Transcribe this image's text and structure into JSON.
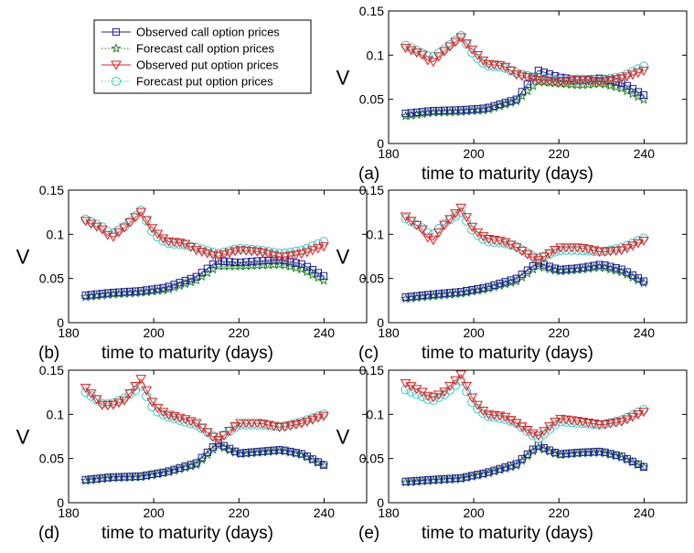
{
  "legend": [
    {
      "label": "Observed call option prices",
      "color": "#1f1fa0",
      "marker": "square",
      "line": "solid"
    },
    {
      "label": "Forecast call option prices",
      "color": "#1c7d1c",
      "marker": "star",
      "line": "dotted"
    },
    {
      "label": "Observed put option prices",
      "color": "#e02020",
      "marker": "triangle-down",
      "line": "solid"
    },
    {
      "label": "Forecast put option prices",
      "color": "#3cc8c8",
      "marker": "circle",
      "line": "dotted"
    }
  ],
  "chart_data": [
    {
      "type": "line",
      "panel_label": "(a)",
      "xlabel": "time to maturity (days)",
      "ylabel": "V",
      "xlim": [
        180,
        250
      ],
      "ylim": [
        0,
        0.15
      ],
      "xticks": [
        "180",
        "200",
        "220",
        "240"
      ],
      "yticks": [
        "0",
        "0.05",
        "0.1",
        "0.15"
      ],
      "x_range": [
        184,
        241
      ],
      "series": [
        {
          "name": "Observed call option prices",
          "x": [
            184,
            190,
            197,
            203,
            210,
            215,
            220,
            225,
            230,
            235,
            241
          ],
          "y": [
            0.034,
            0.037,
            0.038,
            0.04,
            0.05,
            0.083,
            0.075,
            0.072,
            0.074,
            0.068,
            0.052
          ]
        },
        {
          "name": "Forecast call option prices",
          "x": [
            184,
            190,
            197,
            203,
            210,
            215,
            220,
            225,
            230,
            235,
            241
          ],
          "y": [
            0.031,
            0.035,
            0.036,
            0.038,
            0.048,
            0.07,
            0.068,
            0.066,
            0.068,
            0.062,
            0.047
          ]
        },
        {
          "name": "Observed put option prices",
          "x": [
            184,
            188,
            190,
            193,
            197,
            200,
            203,
            207,
            210,
            215,
            220,
            225,
            230,
            235,
            241
          ],
          "y": [
            0.108,
            0.1,
            0.09,
            0.104,
            0.12,
            0.104,
            0.09,
            0.088,
            0.078,
            0.072,
            0.07,
            0.072,
            0.07,
            0.074,
            0.084
          ]
        },
        {
          "name": "Forecast put option prices",
          "x": [
            184,
            188,
            190,
            193,
            197,
            200,
            203,
            207,
            210,
            215,
            220,
            225,
            230,
            235,
            241
          ],
          "y": [
            0.111,
            0.102,
            0.097,
            0.106,
            0.122,
            0.1,
            0.088,
            0.086,
            0.08,
            0.074,
            0.072,
            0.073,
            0.072,
            0.076,
            0.09
          ]
        }
      ]
    },
    {
      "type": "line",
      "panel_label": "(b)",
      "xlabel": "time to maturity (days)",
      "ylabel": "V",
      "xlim": [
        180,
        250
      ],
      "ylim": [
        0,
        0.15
      ],
      "xticks": [
        "180",
        "200",
        "220",
        "240"
      ],
      "yticks": [
        "0",
        "0.05",
        "0.1",
        "0.15"
      ],
      "x_range": [
        184,
        241
      ],
      "series": [
        {
          "name": "Observed call option prices",
          "x": [
            184,
            190,
            197,
            203,
            210,
            215,
            220,
            225,
            230,
            235,
            241
          ],
          "y": [
            0.031,
            0.034,
            0.036,
            0.04,
            0.052,
            0.07,
            0.068,
            0.07,
            0.071,
            0.066,
            0.05
          ]
        },
        {
          "name": "Forecast call option prices",
          "x": [
            184,
            190,
            197,
            203,
            210,
            215,
            220,
            225,
            230,
            235,
            241
          ],
          "y": [
            0.029,
            0.032,
            0.034,
            0.037,
            0.048,
            0.064,
            0.064,
            0.065,
            0.066,
            0.06,
            0.045
          ]
        },
        {
          "name": "Observed put option prices",
          "x": [
            184,
            188,
            190,
            193,
            197,
            200,
            203,
            207,
            210,
            215,
            220,
            225,
            230,
            235,
            241
          ],
          "y": [
            0.115,
            0.105,
            0.095,
            0.107,
            0.125,
            0.104,
            0.092,
            0.09,
            0.082,
            0.075,
            0.082,
            0.08,
            0.074,
            0.078,
            0.088
          ]
        },
        {
          "name": "Forecast put option prices",
          "x": [
            184,
            188,
            190,
            193,
            197,
            200,
            203,
            207,
            210,
            215,
            220,
            225,
            230,
            235,
            241
          ],
          "y": [
            0.117,
            0.108,
            0.1,
            0.108,
            0.127,
            0.1,
            0.09,
            0.088,
            0.085,
            0.078,
            0.084,
            0.082,
            0.078,
            0.082,
            0.094
          ]
        }
      ]
    },
    {
      "type": "line",
      "panel_label": "(c)",
      "xlabel": "time to maturity (days)",
      "ylabel": "V",
      "xlim": [
        180,
        250
      ],
      "ylim": [
        0,
        0.15
      ],
      "xticks": [
        "180",
        "200",
        "220",
        "240"
      ],
      "yticks": [
        "0",
        "0.05",
        "0.1",
        "0.15"
      ],
      "x_range": [
        184,
        241
      ],
      "series": [
        {
          "name": "Observed call option prices",
          "x": [
            184,
            190,
            197,
            203,
            210,
            215,
            220,
            225,
            230,
            235,
            241
          ],
          "y": [
            0.029,
            0.032,
            0.035,
            0.04,
            0.05,
            0.068,
            0.06,
            0.062,
            0.066,
            0.06,
            0.044
          ]
        },
        {
          "name": "Forecast call option prices",
          "x": [
            184,
            190,
            197,
            203,
            210,
            215,
            220,
            225,
            230,
            235,
            241
          ],
          "y": [
            0.027,
            0.03,
            0.033,
            0.038,
            0.047,
            0.064,
            0.058,
            0.06,
            0.063,
            0.057,
            0.042
          ]
        },
        {
          "name": "Observed put option prices",
          "x": [
            184,
            188,
            190,
            193,
            197,
            200,
            203,
            207,
            210,
            215,
            220,
            225,
            230,
            235,
            241
          ],
          "y": [
            0.12,
            0.105,
            0.09,
            0.11,
            0.13,
            0.105,
            0.095,
            0.092,
            0.085,
            0.07,
            0.085,
            0.085,
            0.08,
            0.082,
            0.095
          ]
        },
        {
          "name": "Forecast put option prices",
          "x": [
            184,
            188,
            190,
            193,
            197,
            200,
            203,
            207,
            210,
            215,
            220,
            225,
            230,
            235,
            241
          ],
          "y": [
            0.118,
            0.107,
            0.098,
            0.112,
            0.125,
            0.102,
            0.092,
            0.09,
            0.086,
            0.072,
            0.082,
            0.082,
            0.08,
            0.085,
            0.098
          ]
        }
      ]
    },
    {
      "type": "line",
      "panel_label": "(d)",
      "xlabel": "time to maturity (days)",
      "ylabel": "V",
      "xlim": [
        180,
        250
      ],
      "ylim": [
        0,
        0.15
      ],
      "xticks": [
        "180",
        "200",
        "220",
        "240"
      ],
      "yticks": [
        "0",
        "0.05",
        "0.1",
        "0.15"
      ],
      "x_range": [
        184,
        241
      ],
      "series": [
        {
          "name": "Observed call option prices",
          "x": [
            184,
            190,
            197,
            203,
            210,
            215,
            220,
            225,
            230,
            235,
            241
          ],
          "y": [
            0.026,
            0.029,
            0.03,
            0.035,
            0.045,
            0.068,
            0.056,
            0.058,
            0.06,
            0.055,
            0.04
          ]
        },
        {
          "name": "Forecast call option prices",
          "x": [
            184,
            190,
            197,
            203,
            210,
            215,
            220,
            225,
            230,
            235,
            241
          ],
          "y": [
            0.025,
            0.028,
            0.029,
            0.034,
            0.043,
            0.065,
            0.055,
            0.057,
            0.059,
            0.054,
            0.04
          ]
        },
        {
          "name": "Observed put option prices",
          "x": [
            184,
            188,
            190,
            193,
            197,
            200,
            203,
            207,
            210,
            215,
            220,
            225,
            230,
            235,
            241
          ],
          "y": [
            0.13,
            0.11,
            0.11,
            0.115,
            0.14,
            0.11,
            0.1,
            0.095,
            0.09,
            0.07,
            0.09,
            0.09,
            0.085,
            0.09,
            0.1
          ]
        },
        {
          "name": "Forecast put option prices",
          "x": [
            184,
            188,
            190,
            193,
            197,
            200,
            203,
            207,
            210,
            215,
            220,
            225,
            230,
            235,
            241
          ],
          "y": [
            0.125,
            0.112,
            0.112,
            0.118,
            0.132,
            0.105,
            0.098,
            0.092,
            0.088,
            0.072,
            0.088,
            0.088,
            0.086,
            0.092,
            0.102
          ]
        }
      ]
    },
    {
      "type": "line",
      "panel_label": "(e)",
      "xlabel": "time to maturity (days)",
      "ylabel": "V",
      "xlim": [
        180,
        250
      ],
      "ylim": [
        0,
        0.15
      ],
      "xticks": [
        "180",
        "200",
        "220",
        "240"
      ],
      "yticks": [
        "0",
        "0.05",
        "0.1",
        "0.15"
      ],
      "x_range": [
        184,
        241
      ],
      "series": [
        {
          "name": "Observed call option prices",
          "x": [
            184,
            190,
            197,
            203,
            210,
            215,
            220,
            225,
            230,
            235,
            241
          ],
          "y": [
            0.024,
            0.026,
            0.028,
            0.034,
            0.044,
            0.065,
            0.055,
            0.057,
            0.058,
            0.052,
            0.038
          ]
        },
        {
          "name": "Forecast call option prices",
          "x": [
            184,
            190,
            197,
            203,
            210,
            215,
            220,
            225,
            230,
            235,
            241
          ],
          "y": [
            0.023,
            0.025,
            0.027,
            0.033,
            0.042,
            0.063,
            0.054,
            0.056,
            0.057,
            0.051,
            0.038
          ]
        },
        {
          "name": "Observed put option prices",
          "x": [
            184,
            188,
            190,
            193,
            197,
            200,
            203,
            207,
            210,
            215,
            220,
            225,
            230,
            235,
            241
          ],
          "y": [
            0.135,
            0.125,
            0.118,
            0.125,
            0.145,
            0.115,
            0.1,
            0.098,
            0.09,
            0.075,
            0.095,
            0.092,
            0.088,
            0.092,
            0.105
          ]
        },
        {
          "name": "Forecast put option prices",
          "x": [
            184,
            188,
            190,
            193,
            197,
            200,
            203,
            207,
            210,
            215,
            220,
            225,
            230,
            235,
            241
          ],
          "y": [
            0.128,
            0.12,
            0.115,
            0.122,
            0.138,
            0.11,
            0.098,
            0.095,
            0.09,
            0.072,
            0.092,
            0.09,
            0.088,
            0.094,
            0.108
          ]
        }
      ]
    }
  ]
}
